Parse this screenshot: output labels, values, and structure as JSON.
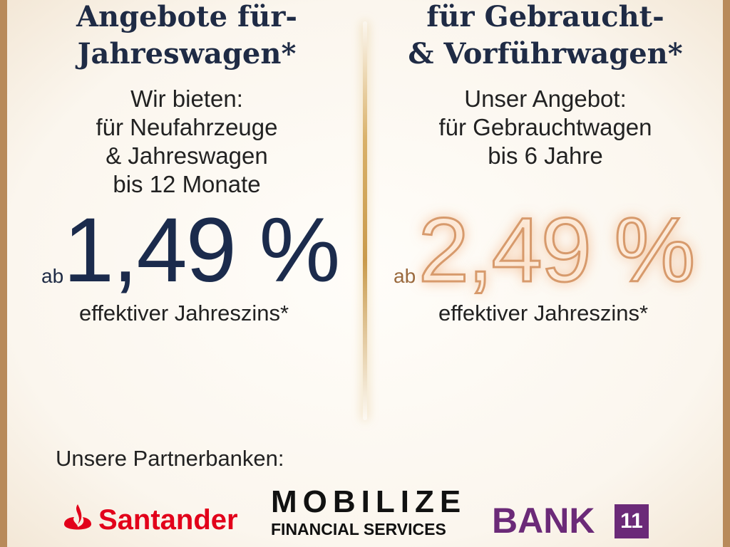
{
  "left": {
    "heading_lines": [
      "Angebote für-",
      "Jahreswagen*"
    ],
    "body_lines": [
      "Wir bieten:",
      "für Neufahrzeuge",
      "& Jahreswagen",
      "bis 12 Monate"
    ],
    "prefix": "ab",
    "rate": "1,49 %",
    "note": "effektiver Jahreszins*"
  },
  "right": {
    "heading_lines": [
      "für Gebraucht-",
      "& Vorführwagen*"
    ],
    "body_lines": [
      "Unser Angebot:",
      "für Gebrauchtwagen",
      "bis 6 Jahre"
    ],
    "prefix": "ab",
    "rate": "2,49 %",
    "note": "effektiver Jahreszins*"
  },
  "partners": {
    "label": "Unsere Partnerbanken:",
    "santander": "Santander",
    "mobilize": "MOBILIZE",
    "mobilize_sub": "FINANCIAL SERVICES",
    "bank": "BANK",
    "bank_badge": "11"
  }
}
